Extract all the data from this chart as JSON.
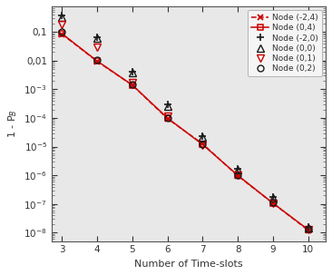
{
  "x": [
    3,
    4,
    5,
    6,
    7,
    8,
    9,
    10
  ],
  "node_m2_0": [
    0.38,
    0.065,
    0.0042,
    0.00029,
    2.3e-05,
    1.7e-06,
    1.8e-07,
    1.55e-08
  ],
  "node_m2_4": [
    0.085,
    0.0095,
    0.0014,
    9.5e-05,
    1.25e-05,
    9.5e-07,
    1.05e-07,
    1.2e-08
  ],
  "node_0_0": [
    0.32,
    0.06,
    0.004,
    0.00026,
    2.1e-05,
    1.55e-06,
    1.65e-07,
    1.45e-08
  ],
  "node_0_1": [
    0.19,
    0.03,
    0.0017,
    0.000115,
    1.15e-05,
    9.8e-07,
    1.02e-07,
    1.22e-08
  ],
  "node_0_2": [
    0.105,
    0.011,
    0.00145,
    0.000102,
    1.22e-05,
    1.02e-06,
    1.12e-07,
    1.32e-08
  ],
  "node_0_4": [
    0.088,
    0.0098,
    0.00142,
    0.0001,
    1.18e-05,
    9.9e-07,
    1.06e-07,
    1.26e-08
  ],
  "xlabel": "Number of Time-slots",
  "ylabel": "1 - P$_B$",
  "ylim_low": 5e-09,
  "ylim_high": 0.8,
  "xlim_low": 2.7,
  "xlim_high": 10.5,
  "ytick_values": [
    1e-08,
    1e-07,
    1e-06,
    1e-05,
    0.0001,
    0.001,
    0.01,
    0.1
  ],
  "ytick_labels": [
    "10$^{-8}$",
    "10$^{-7}$",
    "10$^{-6}$",
    "10$^{-5}$",
    "10$^{-4}$",
    "10$^{-3}$",
    "0,01",
    "0,1"
  ],
  "legend_labels": [
    "Node (-2,0)",
    "Node (-2,4)",
    "Node (0,0)",
    "Node (0,1)",
    "Node (0,2)",
    "Node (0,4)"
  ],
  "color_black": "#1a1a1a",
  "color_red": "#cc0000",
  "bg_color": "#e8e8e8"
}
